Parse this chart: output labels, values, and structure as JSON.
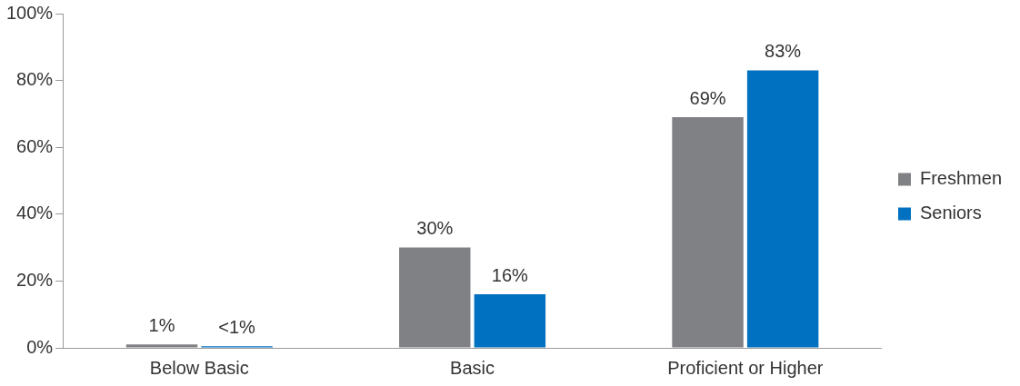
{
  "chart_data": {
    "type": "bar",
    "categories": [
      "Below Basic",
      "Basic",
      "Proficient or Higher"
    ],
    "series": [
      {
        "name": "Freshmen",
        "color": "#808184",
        "values": [
          1,
          30,
          69
        ],
        "value_labels": [
          "1%",
          "30%",
          "69%"
        ]
      },
      {
        "name": "Seniors",
        "color": "#0070c0",
        "values": [
          0.5,
          16,
          83
        ],
        "value_labels": [
          "<1%",
          "16%",
          "83%"
        ]
      }
    ],
    "ylim": [
      0,
      100
    ],
    "yticks": [
      {
        "value": 0,
        "label": "0%"
      },
      {
        "value": 20,
        "label": "20%"
      },
      {
        "value": 40,
        "label": "40%"
      },
      {
        "value": 60,
        "label": "60%"
      },
      {
        "value": 80,
        "label": "80%"
      },
      {
        "value": 100,
        "label": "100%"
      }
    ],
    "grid": false,
    "legend": "right"
  }
}
